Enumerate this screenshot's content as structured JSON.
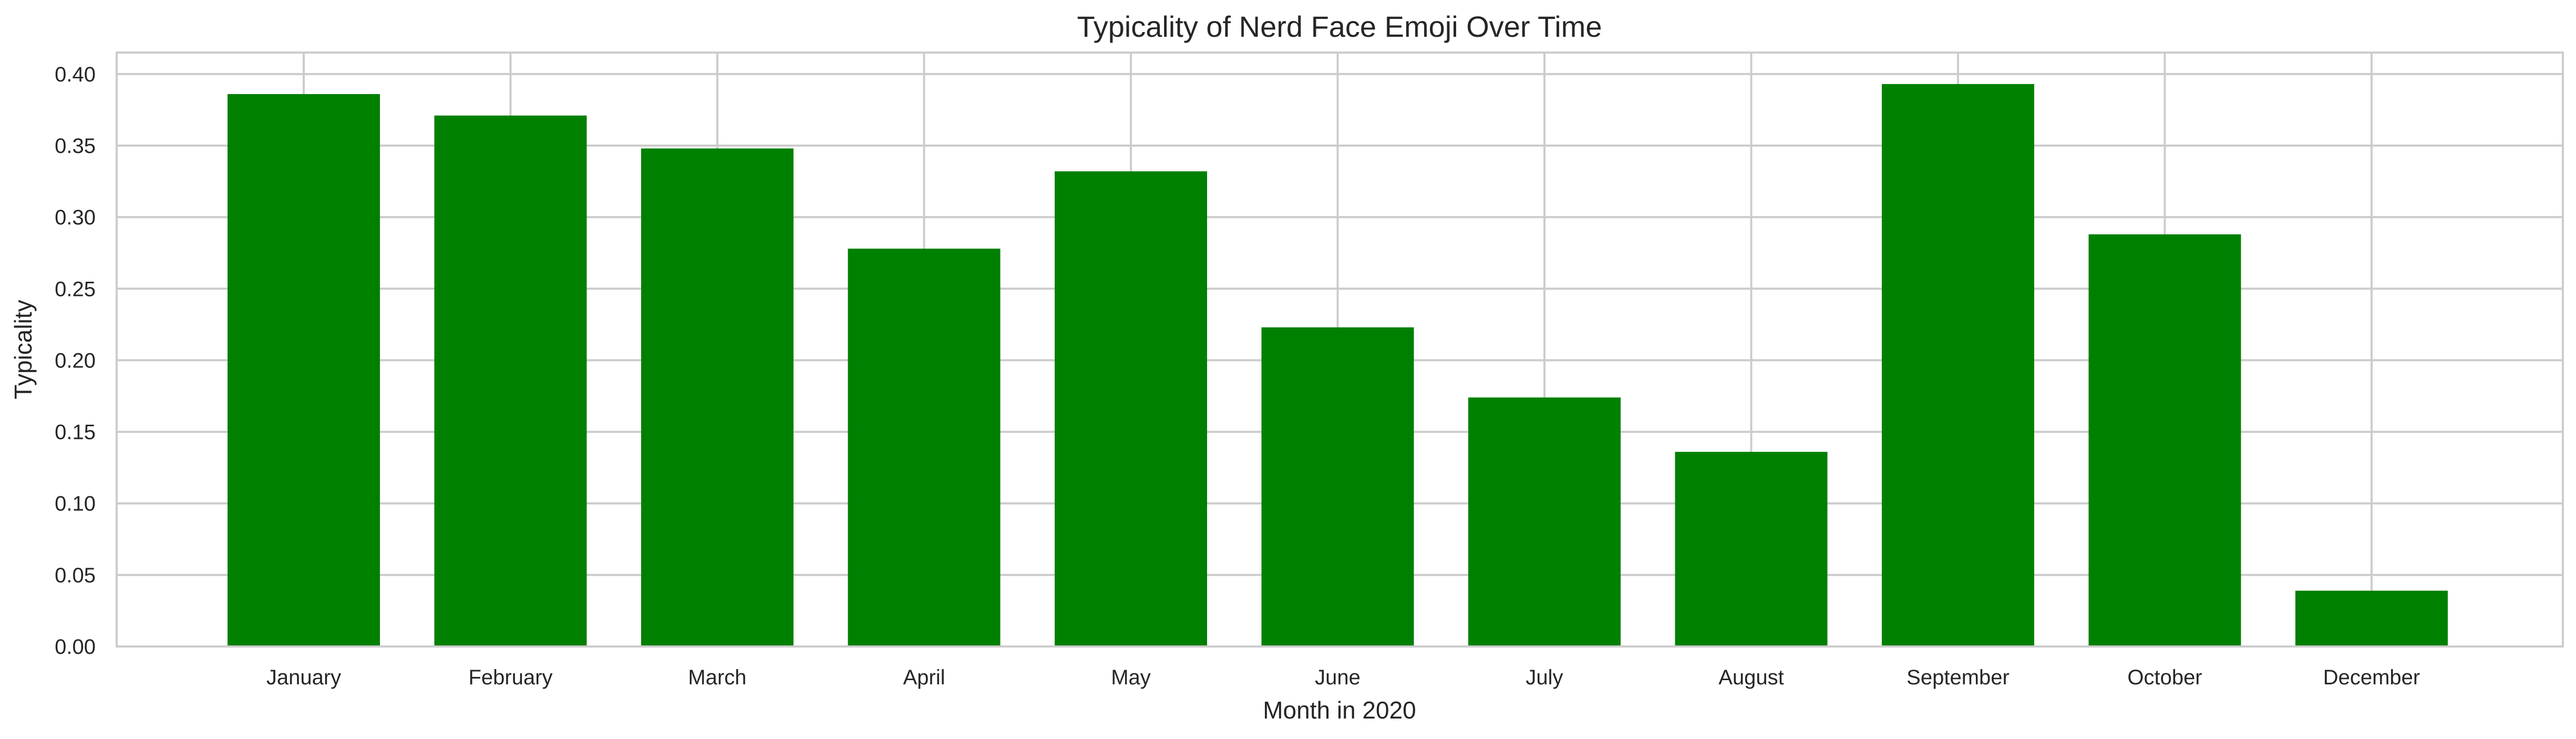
{
  "chart_data": {
    "type": "bar",
    "title": "Typicality of Nerd Face Emoji Over Time",
    "xlabel": "Month in 2020",
    "ylabel": "Typicality",
    "categories": [
      "January",
      "February",
      "March",
      "April",
      "May",
      "June",
      "July",
      "August",
      "September",
      "October",
      "December"
    ],
    "values": [
      0.386,
      0.371,
      0.348,
      0.278,
      0.332,
      0.223,
      0.174,
      0.136,
      0.393,
      0.288,
      0.039
    ],
    "ylim": [
      0,
      0.415
    ],
    "yticks": [
      "0.00",
      "0.05",
      "0.10",
      "0.15",
      "0.20",
      "0.25",
      "0.30",
      "0.35",
      "0.40"
    ],
    "grid": true,
    "bar_color": "#008000"
  }
}
